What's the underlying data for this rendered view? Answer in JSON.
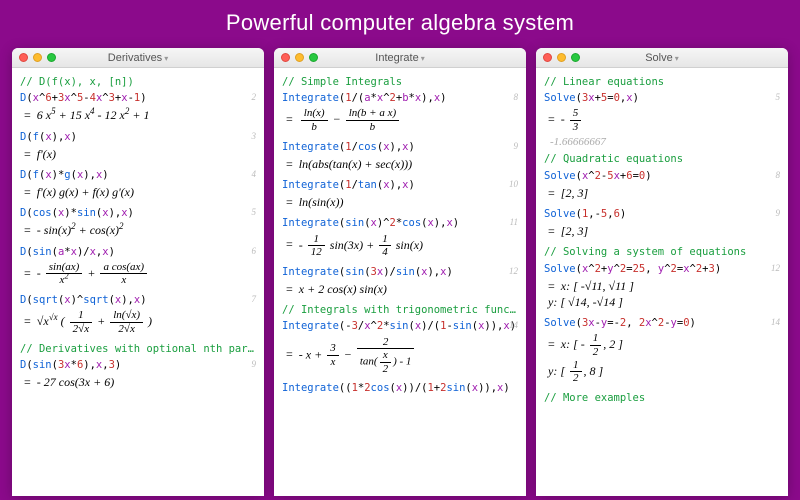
{
  "colors": {
    "background": "#8b0a8b",
    "headline": "#ffffff",
    "window_bg": "#ffffff",
    "titlebar_top": "#f6f6f6",
    "titlebar_bottom": "#e6e6e6",
    "traffic_red": "#ff5f57",
    "traffic_yellow": "#febc2e",
    "traffic_green": "#28c840",
    "comment": "#1a9e3f",
    "keyword": "#0f62d6",
    "variable": "#a01eb0",
    "number": "#c7302c",
    "cellnum": "#bbbbbb",
    "numeric_approx": "#aaaaaa"
  },
  "headline": "Powerful computer algebra system",
  "windows": [
    {
      "id": "derivatives",
      "title": "Derivatives",
      "sections": [
        {
          "comment": "// D(f(x), x, [n])"
        },
        {
          "num": "2",
          "in_html": "<span class='kw'>D</span>(<span class='var'>x</span>^<span class='num'>6</span>+<span class='num'>3</span><span class='var'>x</span>^<span class='num'>5</span>-<span class='num'>4</span><span class='var'>x</span>^<span class='num'>3</span>+<span class='var'>x</span>-<span class='num'>1</span>)",
          "out_html": "6 <i>x</i><sup>5</sup> + 15 <i>x</i><sup>4</sup> - 12 <i>x</i><sup>2</sup> + 1"
        },
        {
          "num": "3",
          "in_html": "<span class='kw'>D</span>(<span class='fn'>f</span>(<span class='var'>x</span>),<span class='var'>x</span>)",
          "out_html": "f'(<i>x</i>)"
        },
        {
          "num": "4",
          "in_html": "<span class='kw'>D</span>(<span class='fn'>f</span>(<span class='var'>x</span>)*<span class='fn'>g</span>(<span class='var'>x</span>),<span class='var'>x</span>)",
          "out_html": "f'(<i>x</i>) g(<i>x</i>) + f(<i>x</i>) g'(<i>x</i>)"
        },
        {
          "num": "5",
          "in_html": "<span class='kw'>D</span>(<span class='fn'>cos</span>(<span class='var'>x</span>)*<span class='fn'>sin</span>(<span class='var'>x</span>),<span class='var'>x</span>)",
          "out_html": "- sin(<i>x</i>)<sup>2</sup> + cos(<i>x</i>)<sup>2</sup>"
        },
        {
          "num": "6",
          "in_html": "<span class='kw'>D</span>(<span class='fn'>sin</span>(<span class='var'>a</span>*<span class='var'>x</span>)/<span class='var'>x</span>,<span class='var'>x</span>)",
          "out_html": "- <span class='frac'><span class='fn-top'>sin(<i>ax</i>)</span><span class='fn-bot'><i>x</i><sup>2</sup></span></span> + <span class='frac'><span class='fn-top'><i>a</i> cos(<i>ax</i>)</span><span class='fn-bot'><i>x</i></span></span>"
        },
        {
          "num": "7",
          "in_html": "<span class='kw'>D</span>(<span class='fn'>sqrt</span>(<span class='var'>x</span>)^<span class='fn'>sqrt</span>(<span class='var'>x</span>),<span class='var'>x</span>)",
          "out_html": "<span class='sqrt-sym'>√</span><i>x</i><sup><span class='sqrt-sym'>√</span><i>x</i></sup> ( <span class='frac'><span class='fn-top'>1</span><span class='fn-bot'>2<span class='sqrt-sym'>√</span><i>x</i></span></span> + <span class='frac'><span class='fn-top'>ln(<span class='sqrt-sym'>√</span><i>x</i>)</span><span class='fn-bot'>2<span class='sqrt-sym'>√</span><i>x</i></span></span> )"
        },
        {
          "comment": "// Derivatives with optional nth parameter"
        },
        {
          "num": "9",
          "in_html": "<span class='kw'>D</span>(<span class='fn'>sin</span>(<span class='num'>3</span><span class='var'>x</span>*<span class='num'>6</span>),<span class='var'>x</span>,<span class='num'>3</span>)",
          "out_html": "- 27 cos(3<i>x</i> + 6)"
        }
      ]
    },
    {
      "id": "integrate",
      "title": "Integrate",
      "sections": [
        {
          "comment": "// Simple Integrals"
        },
        {
          "num": "8",
          "in_html": "<span class='kw'>Integrate</span>(<span class='num'>1</span>/(<span class='var'>a</span>*<span class='var'>x</span>^<span class='num'>2</span>+<span class='var'>b</span>*<span class='var'>x</span>),<span class='var'>x</span>)",
          "out_html": "<span class='frac'><span class='fn-top'>ln(<i>x</i>)</span><span class='fn-bot'><i>b</i></span></span> − <span class='frac'><span class='fn-top'>ln(<i>b</i> + <i>a x</i>)</span><span class='fn-bot'><i>b</i></span></span>"
        },
        {
          "num": "9",
          "in_html": "<span class='kw'>Integrate</span>(<span class='num'>1</span>/<span class='fn'>cos</span>(<span class='var'>x</span>),<span class='var'>x</span>)",
          "out_html": "ln(abs(tan(<i>x</i>) + sec(<i>x</i>)))"
        },
        {
          "num": "10",
          "in_html": "<span class='kw'>Integrate</span>(<span class='num'>1</span>/<span class='fn'>tan</span>(<span class='var'>x</span>),<span class='var'>x</span>)",
          "out_html": "ln(sin(<i>x</i>))"
        },
        {
          "num": "11",
          "in_html": "<span class='kw'>Integrate</span>(<span class='fn'>sin</span>(<span class='var'>x</span>)^<span class='num'>2</span>*<span class='fn'>cos</span>(<span class='var'>x</span>),<span class='var'>x</span>)",
          "out_html": "- <span class='frac'><span class='fn-top'>1</span><span class='fn-bot'>12</span></span> sin(3<i>x</i>) + <span class='frac'><span class='fn-top'>1</span><span class='fn-bot'>4</span></span> sin(<i>x</i>)"
        },
        {
          "num": "12",
          "in_html": "<span class='kw'>Integrate</span>(<span class='fn'>sin</span>(<span class='num'>3</span><span class='var'>x</span>)/<span class='fn'>sin</span>(<span class='var'>x</span>),<span class='var'>x</span>)",
          "out_html": "<i>x</i> + 2 cos(<i>x</i>) sin(<i>x</i>)"
        },
        {
          "comment": "// Integrals with trigonometric functions"
        },
        {
          "num": "14",
          "in_html": "<span class='kw'>Integrate</span>(-<span class='num'>3</span>/<span class='var'>x</span>^<span class='num'>2</span>*<span class='fn'>sin</span>(<span class='var'>x</span>)/(<span class='num'>1</span>-<span class='fn'>sin</span>(<span class='var'>x</span>)),<span class='var'>x</span>)",
          "out_html": "- <i>x</i> + <span class='frac'><span class='fn-top'>3</span><span class='fn-bot'><i>x</i></span></span> − <span class='frac'><span class='fn-top'>2</span><span class='fn-bot'>tan(<span class='frac'><span class='fn-top'><i>x</i></span><span class='fn-bot'>2</span></span>) - 1</span></span>"
        },
        {
          "in_html": "<span class='kw'>Integrate</span>((<span class='num'>1</span>*<span class='num'>2</span><span class='fn'>cos</span>(<span class='var'>x</span>))/(<span class='num'>1</span>+<span class='num'>2</span><span class='fn'>sin</span>(<span class='var'>x</span>)),<span class='var'>x</span>)"
        }
      ]
    },
    {
      "id": "solve",
      "title": "Solve",
      "sections": [
        {
          "comment": "// Linear equations"
        },
        {
          "num": "5",
          "in_html": "<span class='kw'>Solve</span>(<span class='num'>3</span><span class='var'>x</span>+<span class='num'>5</span>=<span class='num'>0</span>,<span class='var'>x</span>)",
          "out_html": "- <span class='frac'><span class='fn-top'>5</span><span class='fn-bot'>3</span></span>",
          "numeric": "-1.66666667"
        },
        {
          "comment": "// Quadratic equations"
        },
        {
          "num": "8",
          "in_html": "<span class='kw'>Solve</span>(<span class='var'>x</span>^<span class='num'>2</span>-<span class='num'>5</span><span class='var'>x</span>+<span class='num'>6</span>=<span class='num'>0</span>)",
          "out_html": "[2, 3]"
        },
        {
          "num": "9",
          "in_html": "<span class='kw'>Solve</span>(<span class='num'>1</span>,-<span class='num'>5</span>,<span class='num'>6</span>)",
          "out_html": "[2, 3]"
        },
        {
          "comment": "// Solving a system of equations"
        },
        {
          "num": "12",
          "in_html": "<span class='kw'>Solve</span>(<span class='var'>x</span>^<span class='num'>2</span>+<span class='var'>y</span>^<span class='num'>2</span>=<span class='num'>25</span>, <span class='var'>y</span>^<span class='num'>2</span>=<span class='var'>x</span>^<span class='num'>2</span>+<span class='num'>3</span>)",
          "out_html": "<i>x</i>: [ -<span class='sqrt-sym'>√</span>11, <span class='sqrt-sym'>√</span>11 ]<br><i>y</i>: [ <span class='sqrt-sym'>√</span>14, -<span class='sqrt-sym'>√</span>14 ]"
        },
        {
          "num": "14",
          "in_html": "<span class='kw'>Solve</span>(<span class='num'>3</span><span class='var'>x</span>-<span class='var'>y</span>=-<span class='num'>2</span>, <span class='num'>2</span><span class='var'>x</span>^<span class='num'>2</span>-<span class='var'>y</span>=<span class='num'>0</span>)",
          "out_html": "<i>x</i>: [ - <span class='frac'><span class='fn-top'>1</span><span class='fn-bot'>2</span></span>, 2 ]<br><i>y</i>: [ <span class='frac'><span class='fn-top'>1</span><span class='fn-bot'>2</span></span>, 8 ]"
        },
        {
          "comment": "// More examples"
        }
      ]
    }
  ]
}
